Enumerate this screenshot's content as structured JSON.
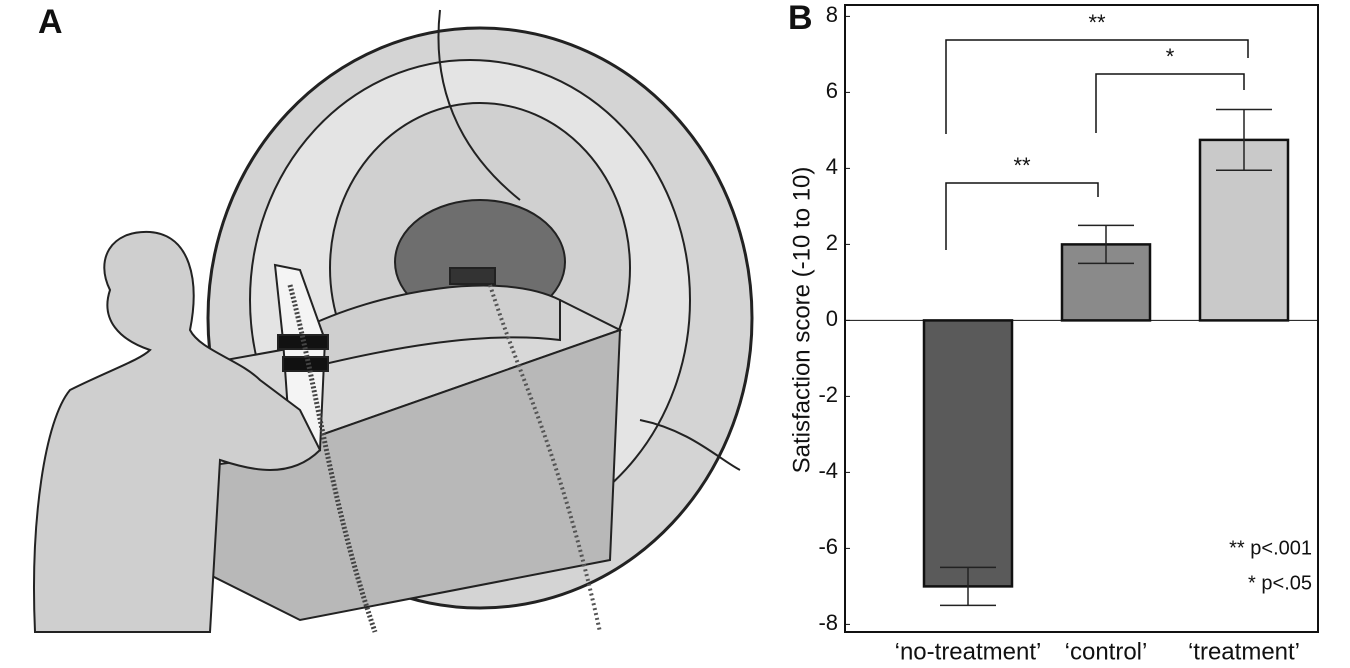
{
  "panels": {
    "a": "A",
    "b": "B"
  },
  "chart_data": {
    "type": "bar",
    "ylabel": "Satisfaction score (-10 to 10)",
    "categories": [
      "‘no-treatment’",
      "‘control’",
      "‘treatment’"
    ],
    "values": [
      -7,
      2,
      4.75
    ],
    "errors": [
      0.5,
      0.5,
      0.8
    ],
    "colors": [
      "#5a5a5a",
      "#8a8a8a",
      "#c9c9c9"
    ],
    "ylim": [
      -8.2,
      8.3
    ],
    "yticks": [
      -8,
      -6,
      -4,
      -2,
      0,
      2,
      4,
      6,
      8
    ],
    "significance": [
      "**",
      "*",
      "**"
    ],
    "legend_notes": [
      "** p<.001",
      "* p<.05"
    ]
  }
}
